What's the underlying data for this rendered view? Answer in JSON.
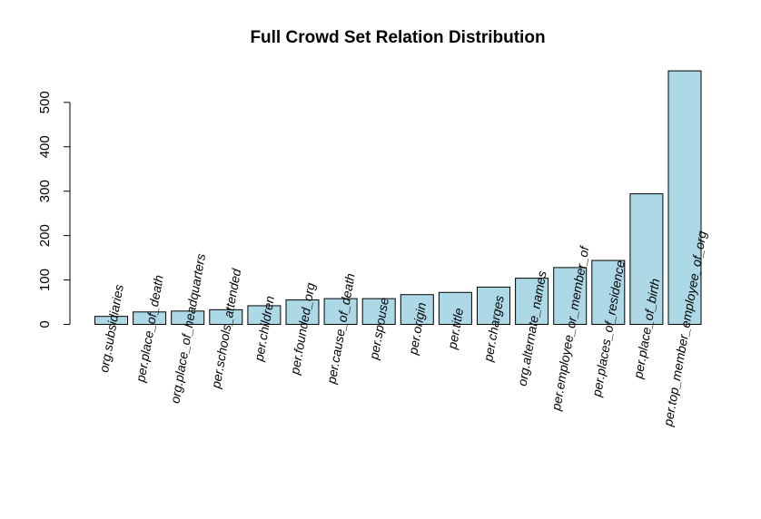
{
  "chart_data": {
    "type": "bar",
    "title": "Full Crowd Set Relation Distribution",
    "xlabel": "",
    "ylabel": "",
    "ylim": [
      0,
      575
    ],
    "yticks": [
      0,
      100,
      200,
      300,
      400,
      500
    ],
    "grid": false,
    "legend": "none",
    "bar_color": "#add8e6",
    "categories": [
      "org.subsidiaries",
      "per.place_of_death",
      "org.place_of_headquarters",
      "per.schools_attended",
      "per.children",
      "per.founded_org",
      "per.cause_of_death",
      "per.spouse",
      "per.origin",
      "per.title",
      "per.charges",
      "org.alternate_names",
      "per.employee_or_member_of",
      "per.places_of_residence",
      "per.place_of_birth",
      "per.top_member_employee_of_org"
    ],
    "values": [
      18,
      28,
      30,
      33,
      42,
      55,
      58,
      58,
      67,
      72,
      84,
      104,
      128,
      144,
      294,
      571
    ]
  }
}
